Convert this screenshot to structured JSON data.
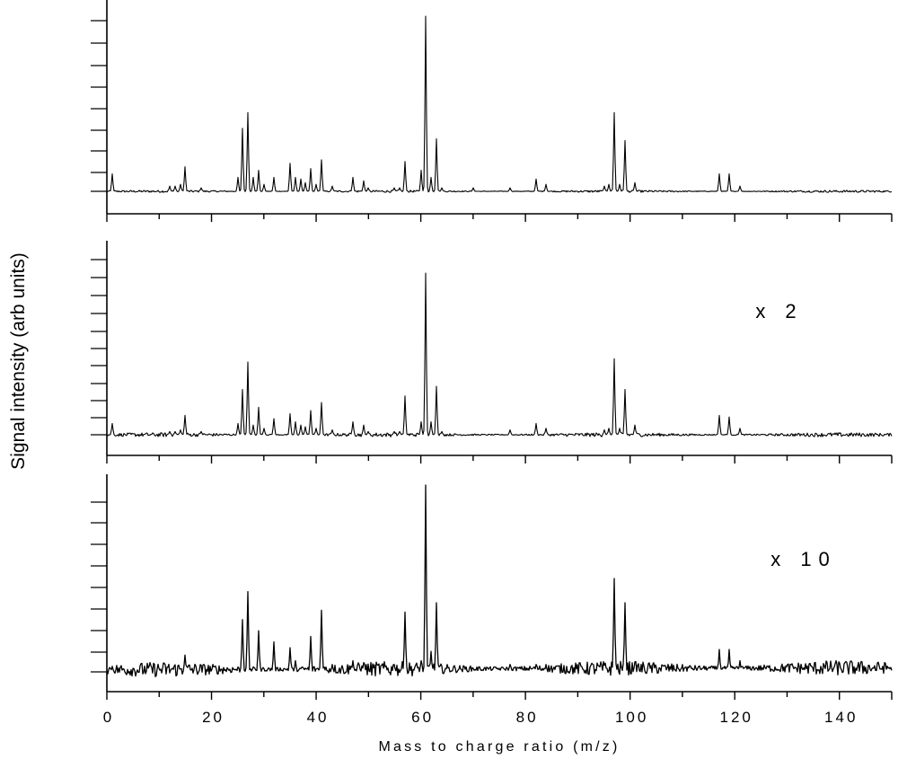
{
  "chart_data": {
    "type": "line",
    "xlabel": "Mass to charge ratio (m/z)",
    "ylabel": "Signal intensity (arb units)",
    "xlim": [
      0,
      150
    ],
    "x_ticks": [
      "0",
      "20",
      "40",
      "60",
      "80",
      "100",
      "120",
      "140"
    ],
    "panels": [
      {
        "multiplier": "",
        "noise": 0.004,
        "peaks": [
          [
            1,
            0.1
          ],
          [
            12,
            0.03
          ],
          [
            13,
            0.03
          ],
          [
            14,
            0.04
          ],
          [
            15,
            0.14
          ],
          [
            18,
            0.02
          ],
          [
            25,
            0.08
          ],
          [
            26,
            0.36
          ],
          [
            27,
            0.45
          ],
          [
            28,
            0.08
          ],
          [
            29,
            0.12
          ],
          [
            30,
            0.04
          ],
          [
            32,
            0.08
          ],
          [
            35,
            0.16
          ],
          [
            36,
            0.08
          ],
          [
            37,
            0.07
          ],
          [
            38,
            0.05
          ],
          [
            39,
            0.13
          ],
          [
            40,
            0.04
          ],
          [
            41,
            0.18
          ],
          [
            43,
            0.03
          ],
          [
            47,
            0.08
          ],
          [
            49,
            0.06
          ],
          [
            50,
            0.02
          ],
          [
            55,
            0.02
          ],
          [
            56,
            0.02
          ],
          [
            57,
            0.17
          ],
          [
            60,
            0.12
          ],
          [
            61,
            1.0
          ],
          [
            62,
            0.08
          ],
          [
            63,
            0.3
          ],
          [
            64,
            0.02
          ],
          [
            70,
            0.02
          ],
          [
            77,
            0.02
          ],
          [
            82,
            0.07
          ],
          [
            84,
            0.04
          ],
          [
            95,
            0.03
          ],
          [
            96,
            0.04
          ],
          [
            97,
            0.45
          ],
          [
            98,
            0.04
          ],
          [
            99,
            0.29
          ],
          [
            101,
            0.05
          ],
          [
            117,
            0.1
          ],
          [
            119,
            0.1
          ],
          [
            121,
            0.03
          ]
        ]
      },
      {
        "multiplier": "x 2",
        "noise": 0.008,
        "peaks": [
          [
            1,
            0.07
          ],
          [
            12,
            0.02
          ],
          [
            13,
            0.02
          ],
          [
            14,
            0.03
          ],
          [
            15,
            0.12
          ],
          [
            18,
            0.02
          ],
          [
            25,
            0.07
          ],
          [
            26,
            0.28
          ],
          [
            27,
            0.45
          ],
          [
            28,
            0.06
          ],
          [
            29,
            0.17
          ],
          [
            30,
            0.04
          ],
          [
            32,
            0.1
          ],
          [
            35,
            0.13
          ],
          [
            36,
            0.08
          ],
          [
            37,
            0.06
          ],
          [
            38,
            0.05
          ],
          [
            39,
            0.15
          ],
          [
            40,
            0.04
          ],
          [
            41,
            0.2
          ],
          [
            43,
            0.03
          ],
          [
            47,
            0.08
          ],
          [
            49,
            0.06
          ],
          [
            50,
            0.02
          ],
          [
            55,
            0.02
          ],
          [
            56,
            0.02
          ],
          [
            57,
            0.24
          ],
          [
            60,
            0.08
          ],
          [
            61,
            1.0
          ],
          [
            62,
            0.08
          ],
          [
            63,
            0.3
          ],
          [
            64,
            0.02
          ],
          [
            77,
            0.03
          ],
          [
            82,
            0.07
          ],
          [
            84,
            0.04
          ],
          [
            95,
            0.03
          ],
          [
            96,
            0.04
          ],
          [
            97,
            0.47
          ],
          [
            98,
            0.04
          ],
          [
            99,
            0.28
          ],
          [
            101,
            0.06
          ],
          [
            117,
            0.12
          ],
          [
            119,
            0.11
          ],
          [
            121,
            0.04
          ]
        ]
      },
      {
        "multiplier": "x 10",
        "noise": 0.025,
        "peaks": [
          [
            1,
            0.03
          ],
          [
            15,
            0.09
          ],
          [
            26,
            0.28
          ],
          [
            27,
            0.43
          ],
          [
            29,
            0.22
          ],
          [
            32,
            0.16
          ],
          [
            35,
            0.13
          ],
          [
            36,
            0.06
          ],
          [
            39,
            0.19
          ],
          [
            41,
            0.33
          ],
          [
            43,
            0.04
          ],
          [
            47,
            0.06
          ],
          [
            49,
            0.05
          ],
          [
            55,
            0.04
          ],
          [
            57,
            0.32
          ],
          [
            60,
            0.06
          ],
          [
            61,
            1.0
          ],
          [
            62,
            0.11
          ],
          [
            63,
            0.37
          ],
          [
            77,
            0.04
          ],
          [
            82,
            0.04
          ],
          [
            84,
            0.04
          ],
          [
            97,
            0.5
          ],
          [
            99,
            0.37
          ],
          [
            101,
            0.05
          ],
          [
            117,
            0.12
          ],
          [
            119,
            0.12
          ],
          [
            121,
            0.06
          ]
        ]
      }
    ]
  }
}
